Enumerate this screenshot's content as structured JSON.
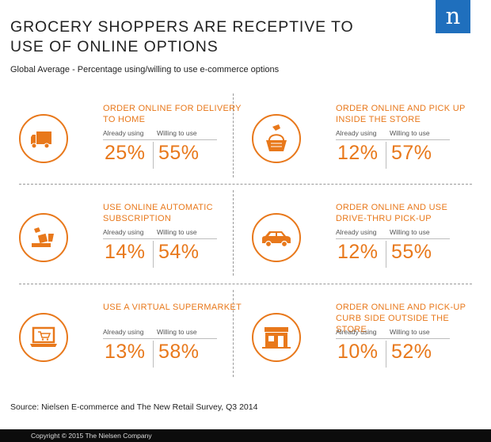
{
  "title": "GROCERY SHOPPERS ARE RECEPTIVE TO USE OF ONLINE OPTIONS",
  "subtitle": "Global Average - Percentage using/willing to use e-commerce options",
  "logo_letter": "n",
  "colors": {
    "accent": "#e8781b",
    "logo": "#1f6fbd"
  },
  "column_headers": {
    "already": "Already using",
    "willing": "Willing to use"
  },
  "chart_data": {
    "type": "table",
    "columns": [
      "Already using",
      "Willing to use"
    ],
    "rows": [
      {
        "label": "ORDER ONLINE FOR DELIVERY TO HOME",
        "icon": "truck-icon",
        "already": "25%",
        "willing": "55%"
      },
      {
        "label": "ORDER ONLINE AND PICK UP INSIDE THE STORE",
        "icon": "basket-icon",
        "already": "12%",
        "willing": "57%"
      },
      {
        "label": "USE ONLINE AUTOMATIC SUBSCRIPTION",
        "icon": "subscription-box-icon",
        "already": "14%",
        "willing": "54%"
      },
      {
        "label": "ORDER ONLINE AND USE DRIVE-THRU PICK-UP",
        "icon": "car-icon",
        "already": "12%",
        "willing": "55%"
      },
      {
        "label": "USE A VIRTUAL SUPERMARKET",
        "icon": "laptop-cart-icon",
        "already": "13%",
        "willing": "58%"
      },
      {
        "label": "ORDER ONLINE AND PICK-UP CURB SIDE OUTSIDE THE STORE",
        "icon": "storefront-icon",
        "already": "10%",
        "willing": "52%"
      }
    ]
  },
  "source": "Source: Nielsen E-commerce and The New Retail Survey, Q3 2014",
  "footer": "Copyright © 2015 The Nielsen Company"
}
